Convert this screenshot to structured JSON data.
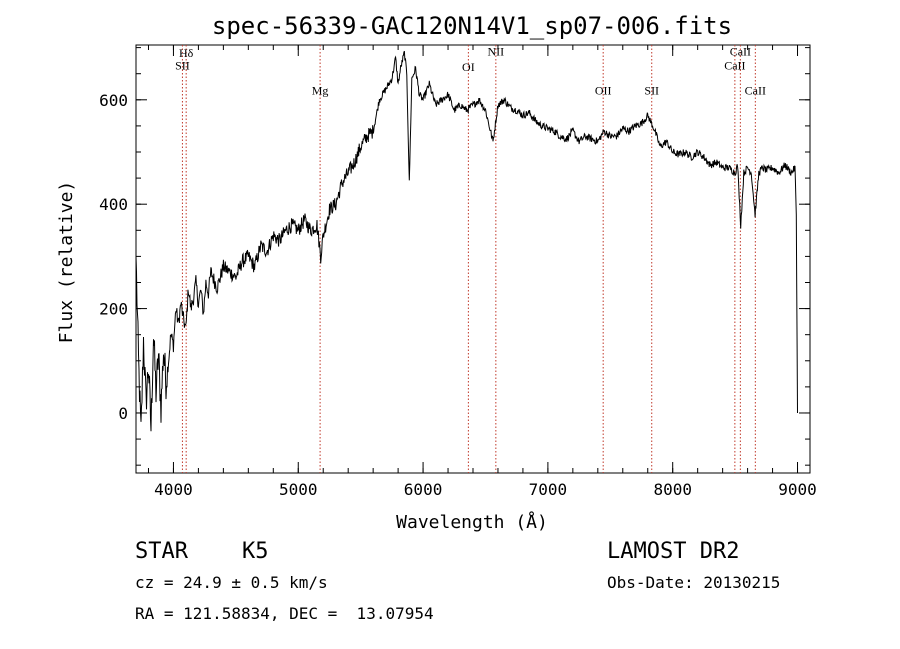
{
  "chart_data": {
    "type": "line",
    "title": "spec-56339-GAC120N14V1_sp07-006.fits",
    "xlabel": "Wavelength (Å)",
    "ylabel": "Flux (relative)",
    "xlim": [
      3700,
      9100
    ],
    "ylim": [
      -115,
      705
    ],
    "xticks": [
      4000,
      5000,
      6000,
      7000,
      8000,
      9000
    ],
    "yticks": [
      0,
      200,
      400,
      600
    ],
    "x_minor_step": 200,
    "y_minor_step": 50,
    "grid": false,
    "series": [
      {
        "line_color": "#000000",
        "points": [
          [
            3700,
            300
          ],
          [
            3720,
            100
          ],
          [
            3740,
            -40
          ],
          [
            3760,
            140
          ],
          [
            3780,
            20
          ],
          [
            3800,
            90
          ],
          [
            3820,
            -30
          ],
          [
            3840,
            150
          ],
          [
            3860,
            40
          ],
          [
            3880,
            110
          ],
          [
            3900,
            10
          ],
          [
            3920,
            120
          ],
          [
            3940,
            60
          ],
          [
            3960,
            100
          ],
          [
            3980,
            150
          ],
          [
            4000,
            130
          ],
          [
            4020,
            200
          ],
          [
            4040,
            170
          ],
          [
            4060,
            210
          ],
          [
            4080,
            180
          ],
          [
            4100,
            160
          ],
          [
            4120,
            240
          ],
          [
            4140,
            200
          ],
          [
            4160,
            220
          ],
          [
            4180,
            250
          ],
          [
            4200,
            210
          ],
          [
            4220,
            235
          ],
          [
            4240,
            190
          ],
          [
            4260,
            250
          ],
          [
            4280,
            230
          ],
          [
            4300,
            270
          ],
          [
            4350,
            240
          ],
          [
            4400,
            280
          ],
          [
            4450,
            270
          ],
          [
            4500,
            260
          ],
          [
            4550,
            290
          ],
          [
            4600,
            300
          ],
          [
            4650,
            280
          ],
          [
            4700,
            320
          ],
          [
            4750,
            310
          ],
          [
            4800,
            340
          ],
          [
            4850,
            330
          ],
          [
            4900,
            350
          ],
          [
            4950,
            360
          ],
          [
            5000,
            350
          ],
          [
            5050,
            370
          ],
          [
            5100,
            350
          ],
          [
            5150,
            360
          ],
          [
            5180,
            300
          ],
          [
            5200,
            340
          ],
          [
            5250,
            390
          ],
          [
            5300,
            400
          ],
          [
            5350,
            440
          ],
          [
            5400,
            460
          ],
          [
            5450,
            480
          ],
          [
            5500,
            510
          ],
          [
            5550,
            530
          ],
          [
            5600,
            540
          ],
          [
            5650,
            600
          ],
          [
            5700,
            620
          ],
          [
            5750,
            640
          ],
          [
            5780,
            680
          ],
          [
            5800,
            630
          ],
          [
            5820,
            660
          ],
          [
            5850,
            690
          ],
          [
            5870,
            650
          ],
          [
            5890,
            440
          ],
          [
            5910,
            640
          ],
          [
            5940,
            660
          ],
          [
            5970,
            610
          ],
          [
            6000,
            600
          ],
          [
            6050,
            630
          ],
          [
            6100,
            590
          ],
          [
            6150,
            600
          ],
          [
            6200,
            610
          ],
          [
            6250,
            580
          ],
          [
            6300,
            590
          ],
          [
            6350,
            580
          ],
          [
            6400,
            590
          ],
          [
            6450,
            600
          ],
          [
            6500,
            580
          ],
          [
            6560,
            520
          ],
          [
            6600,
            590
          ],
          [
            6650,
            600
          ],
          [
            6700,
            585
          ],
          [
            6750,
            580
          ],
          [
            6800,
            570
          ],
          [
            6850,
            575
          ],
          [
            6900,
            560
          ],
          [
            6950,
            550
          ],
          [
            7000,
            545
          ],
          [
            7050,
            540
          ],
          [
            7100,
            530
          ],
          [
            7150,
            525
          ],
          [
            7200,
            540
          ],
          [
            7250,
            520
          ],
          [
            7300,
            530
          ],
          [
            7350,
            525
          ],
          [
            7400,
            520
          ],
          [
            7450,
            540
          ],
          [
            7500,
            530
          ],
          [
            7550,
            530
          ],
          [
            7600,
            545
          ],
          [
            7650,
            540
          ],
          [
            7700,
            550
          ],
          [
            7750,
            555
          ],
          [
            7800,
            570
          ],
          [
            7850,
            545
          ],
          [
            7900,
            510
          ],
          [
            7950,
            520
          ],
          [
            8000,
            500
          ],
          [
            8050,
            495
          ],
          [
            8100,
            500
          ],
          [
            8150,
            490
          ],
          [
            8200,
            500
          ],
          [
            8250,
            490
          ],
          [
            8300,
            475
          ],
          [
            8350,
            480
          ],
          [
            8400,
            470
          ],
          [
            8450,
            470
          ],
          [
            8500,
            460
          ],
          [
            8520,
            475
          ],
          [
            8545,
            360
          ],
          [
            8570,
            460
          ],
          [
            8600,
            470
          ],
          [
            8630,
            460
          ],
          [
            8660,
            380
          ],
          [
            8690,
            460
          ],
          [
            8720,
            470
          ],
          [
            8750,
            465
          ],
          [
            8800,
            470
          ],
          [
            8850,
            460
          ],
          [
            8900,
            475
          ],
          [
            8950,
            460
          ],
          [
            8980,
            470
          ],
          [
            8990,
            380
          ],
          [
            9000,
            0
          ]
        ]
      }
    ],
    "lines": [
      {
        "x": 4072,
        "label": "SII",
        "label_y": 658
      },
      {
        "x": 4102,
        "label": "Hδ",
        "label_y": 682
      },
      {
        "x": 5175,
        "label": "Mg",
        "label_y": 610
      },
      {
        "x": 6363,
        "label": "OI",
        "label_y": 655
      },
      {
        "x": 6583,
        "label": "NII",
        "label_y": 685
      },
      {
        "x": 7443,
        "label": "OII",
        "label_y": 610
      },
      {
        "x": 7832,
        "label": "SII",
        "label_y": 610
      },
      {
        "x": 8498,
        "label": "CaII",
        "label_y": 658
      },
      {
        "x": 8542,
        "label": "CaII",
        "label_y": 685
      },
      {
        "x": 8662,
        "label": "CaII",
        "label_y": 610
      }
    ],
    "line_color": "#c0392b"
  },
  "info": {
    "object_class": "STAR",
    "subclass": "K5",
    "survey": "LAMOST DR2",
    "cz": "cz = 24.9 ± 0.5 km/s",
    "obs_date": "Obs-Date: 20130215",
    "coords": "RA = 121.58834, DEC =  13.07954"
  }
}
